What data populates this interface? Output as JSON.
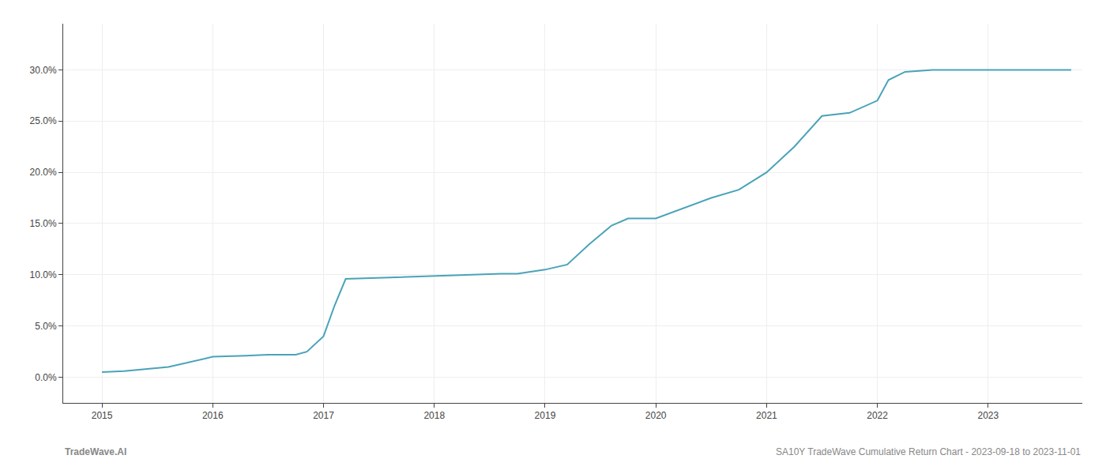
{
  "chart_data": {
    "type": "line",
    "x": [
      2015.0,
      2015.2,
      2015.6,
      2016.0,
      2016.3,
      2016.5,
      2016.75,
      2016.85,
      2017.0,
      2017.1,
      2017.2,
      2017.5,
      2017.75,
      2018.0,
      2018.25,
      2018.4,
      2018.6,
      2018.75,
      2019.0,
      2019.2,
      2019.4,
      2019.6,
      2019.75,
      2020.0,
      2020.25,
      2020.5,
      2020.75,
      2021.0,
      2021.25,
      2021.5,
      2021.75,
      2022.0,
      2022.1,
      2022.25,
      2022.5,
      2022.75,
      2023.0,
      2023.5,
      2023.75
    ],
    "values": [
      0.005,
      0.006,
      0.01,
      0.02,
      0.021,
      0.022,
      0.022,
      0.025,
      0.04,
      0.07,
      0.096,
      0.097,
      0.098,
      0.099,
      0.1,
      0.1,
      0.101,
      0.101,
      0.105,
      0.11,
      0.13,
      0.148,
      0.155,
      0.155,
      0.165,
      0.175,
      0.183,
      0.2,
      0.225,
      0.255,
      0.258,
      0.27,
      0.29,
      0.298,
      0.3,
      0.3,
      0.3,
      0.3,
      0.3
    ],
    "color": "#4aa3b8",
    "xlim": [
      2014.65,
      2023.85
    ],
    "xticks": [
      2015,
      2016,
      2017,
      2018,
      2019,
      2020,
      2021,
      2022,
      2023
    ],
    "ylim": [
      -0.025,
      0.345
    ],
    "yticks": [
      {
        "value": 0.0,
        "label": "0.0%"
      },
      {
        "value": 0.05,
        "label": "5.0%"
      },
      {
        "value": 0.1,
        "label": "10.0%"
      },
      {
        "value": 0.15,
        "label": "15.0%"
      },
      {
        "value": 0.2,
        "label": "20.0%"
      },
      {
        "value": 0.25,
        "label": "25.0%"
      },
      {
        "value": 0.3,
        "label": "30.0%"
      }
    ],
    "grid": true,
    "annotations": [
      "TradeWave.AI",
      "SA10Y TradeWave Cumulative Return Chart - 2023-09-18 to 2023-11-01"
    ]
  }
}
